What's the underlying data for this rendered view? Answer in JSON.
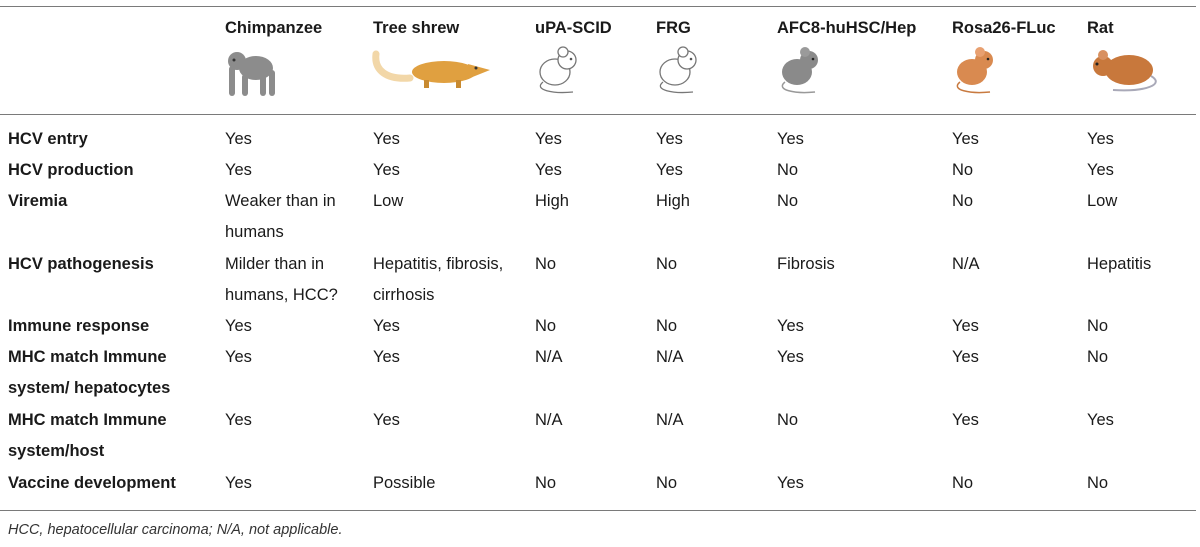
{
  "table": {
    "columns": [
      "Chimpanzee",
      "Tree shrew",
      "uPA-SCID",
      "FRG",
      "AFC8-huHSC/Hep",
      "Rosa26-FLuc",
      "Rat"
    ],
    "icons": [
      "chimpanzee-icon",
      "tree-shrew-icon",
      "mouse-outline-icon",
      "mouse-outline-icon",
      "mouse-gray-icon",
      "mouse-orange-icon",
      "rat-icon"
    ],
    "rows": [
      {
        "label": "HCV entry",
        "values": [
          "Yes",
          "Yes",
          "Yes",
          "Yes",
          "Yes",
          "Yes",
          "Yes"
        ]
      },
      {
        "label": "HCV production",
        "values": [
          "Yes",
          "Yes",
          "Yes",
          "Yes",
          "No",
          "No",
          "Yes"
        ]
      },
      {
        "label": "Viremia",
        "values": [
          "Weaker than in\nhumans",
          "Low",
          "High",
          "High",
          "No",
          "No",
          "Low"
        ]
      },
      {
        "label": "HCV pathogenesis",
        "values": [
          "Milder than in\nhumans, HCC?",
          "Hepatitis, fibrosis,\ncirrhosis",
          "No",
          "No",
          "Fibrosis",
          "N/A",
          "Hepatitis"
        ]
      },
      {
        "label": "Immune response",
        "values": [
          "Yes",
          "Yes",
          "No",
          "No",
          "Yes",
          "Yes",
          "No"
        ]
      },
      {
        "label": "MHC match Immune\nsystem/ hepatocytes",
        "values": [
          "Yes",
          "Yes",
          "N/A",
          "N/A",
          "Yes",
          "Yes",
          "No"
        ]
      },
      {
        "label": "MHC match Immune\nsystem/host",
        "values": [
          "Yes",
          "Yes",
          "N/A",
          "N/A",
          "No",
          "Yes",
          "Yes"
        ]
      },
      {
        "label": "Vaccine development",
        "values": [
          "Yes",
          "Possible",
          "No",
          "No",
          "Yes",
          "No",
          "No"
        ]
      }
    ]
  },
  "footnote": "HCC, hepatocellular carcinoma; N/A, not applicable.",
  "colors": {
    "rule": "#7a7a7a",
    "text": "#1a1a1a",
    "chimp": "#8c8c8c",
    "shrew": "#e0a040",
    "mouse_gray": "#8a8a8a",
    "mouse_orange": "#d98a50",
    "rat": "#c8783c"
  }
}
